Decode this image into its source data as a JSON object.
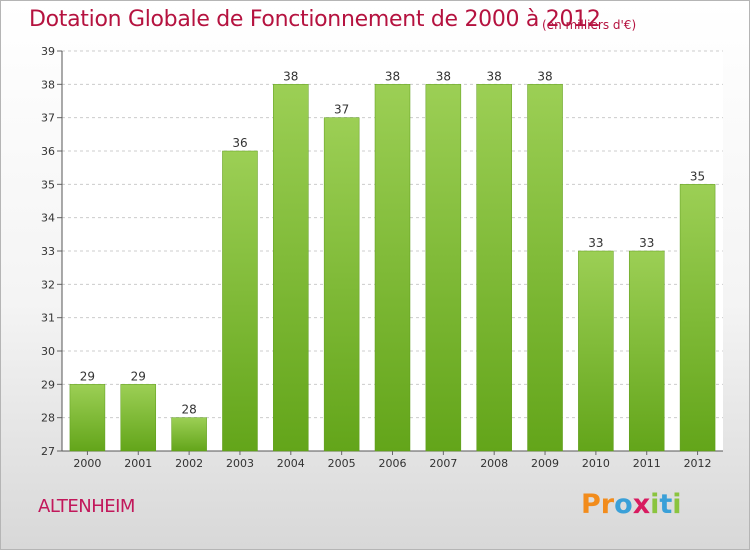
{
  "chart_data": {
    "type": "bar",
    "title": "Dotation Globale de Fonctionnement de 2000 à 2012",
    "unit_label": "(en milliers d'€)",
    "categories": [
      "2000",
      "2001",
      "2002",
      "2003",
      "2004",
      "2005",
      "2006",
      "2007",
      "2008",
      "2009",
      "2010",
      "2011",
      "2012"
    ],
    "values": [
      29,
      29,
      28,
      36,
      38,
      37,
      38,
      38,
      38,
      38,
      33,
      33,
      35
    ],
    "data_labels": [
      "29",
      "29",
      "28",
      "36",
      "38",
      "37",
      "38",
      "38",
      "38",
      "38",
      "33",
      "33",
      "35"
    ],
    "ylim": [
      27,
      39
    ],
    "yticks": [
      "27",
      "28",
      "29",
      "30",
      "31",
      "32",
      "33",
      "34",
      "35",
      "36",
      "37",
      "38",
      "39"
    ],
    "grid": true,
    "bar_color": "#7fc142"
  },
  "footer": {
    "city": "ALTENHEIM",
    "logo_letters": [
      "P",
      "r",
      "o",
      "x",
      "i",
      "t",
      "i"
    ],
    "logo_colors": [
      "#f28c1c",
      "#f28c1c",
      "#3aa0d8",
      "#d81b60",
      "#8ac43f",
      "#3aa0d8",
      "#8ac43f"
    ]
  }
}
